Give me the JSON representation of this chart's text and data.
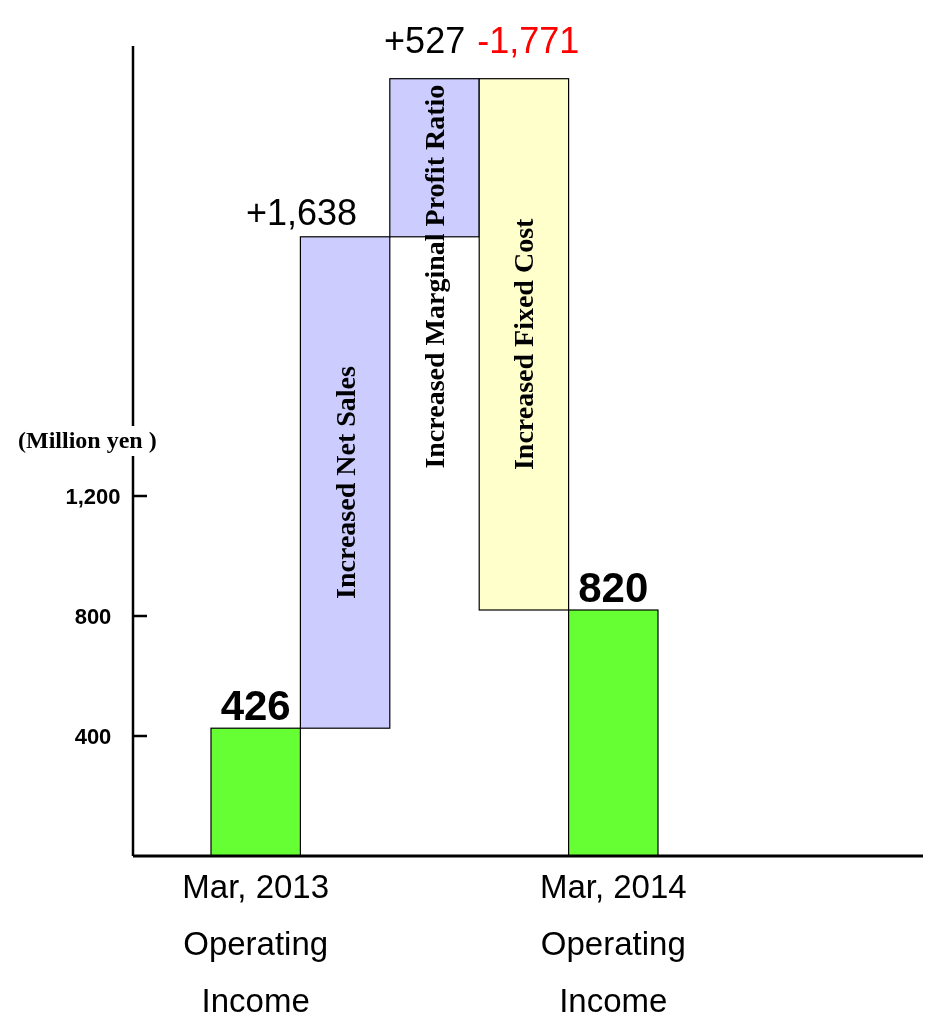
{
  "chart_data": {
    "type": "bar",
    "ylabel": "(Million yen )",
    "categories": [
      "Mar, 2013 Operating Income",
      "Increased Net Sales",
      "Increased Marginal Profit Ratio",
      "Increased Fixed Cost",
      "Mar, 2014 Operating Income"
    ],
    "values": [
      426,
      1638,
      527,
      -1771,
      820
    ],
    "base": [
      0,
      426,
      2064,
      2591,
      0
    ],
    "colors": [
      "#66ff33",
      "#ccccff",
      "#ccccff",
      "#ffffcc",
      "#66ff33"
    ],
    "value_labels": [
      "426",
      "+1,638",
      "+527",
      "-1,771",
      "820"
    ],
    "ylim": [
      0,
      2700
    ],
    "yticks": [
      {
        "value": 400,
        "label": "400"
      },
      {
        "value": 800,
        "label": "800"
      },
      {
        "value": 1200,
        "label": "1,200"
      }
    ],
    "grid": false
  }
}
